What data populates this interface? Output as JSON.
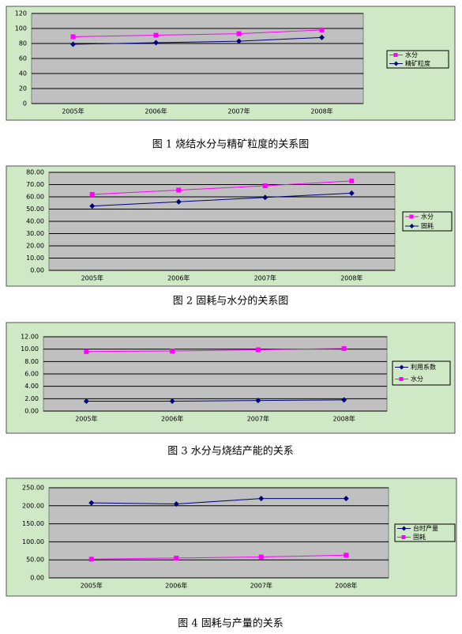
{
  "chart_data": [
    {
      "type": "line",
      "caption": "图 1   烧结水分与精矿粒度的关系图",
      "categories": [
        "2005年",
        "2006年",
        "2007年",
        "2008年"
      ],
      "series": [
        {
          "name": "水分",
          "color": "#ff00ff",
          "marker": "square",
          "values": [
            89,
            91,
            93,
            98
          ]
        },
        {
          "name": "精矿粒度",
          "color": "#000080",
          "marker": "diamond",
          "values": [
            79,
            81,
            83,
            88
          ]
        }
      ],
      "ylim": [
        0,
        120
      ],
      "yticks": [
        0,
        20,
        40,
        60,
        80,
        100,
        120
      ],
      "grid": true
    },
    {
      "type": "line",
      "caption": "图 2   固耗与水分的关系图",
      "categories": [
        "2005年",
        "2006年",
        "2007年",
        "2008年"
      ],
      "series": [
        {
          "name": "水分",
          "color": "#ff00ff",
          "marker": "square",
          "values": [
            62,
            65.5,
            69,
            73
          ]
        },
        {
          "name": "固耗",
          "color": "#000080",
          "marker": "diamond",
          "values": [
            52.5,
            56,
            59.5,
            63
          ]
        }
      ],
      "ylim": [
        0,
        80
      ],
      "yticks": [
        {
          "value": 0,
          "label": "0.00"
        },
        {
          "value": 10,
          "label": "10.00"
        },
        {
          "value": 20,
          "label": "20.00"
        },
        {
          "value": 30,
          "label": "30.00"
        },
        {
          "value": 40,
          "label": "40.00"
        },
        {
          "value": 50,
          "label": "50.00"
        },
        {
          "value": 60,
          "label": "60.00"
        },
        {
          "value": 70,
          "label": "70.00"
        },
        {
          "value": 80,
          "label": "80.00"
        }
      ],
      "grid": true
    },
    {
      "type": "line",
      "caption": "图 3   水分与烧结产能的关系",
      "categories": [
        "2005年",
        "2006年",
        "2007年",
        "2008年"
      ],
      "series": [
        {
          "name": "利用系数",
          "color": "#000080",
          "marker": "diamond",
          "values": [
            1.6,
            1.6,
            1.7,
            1.8
          ]
        },
        {
          "name": "水分",
          "color": "#ff00ff",
          "marker": "square",
          "values": [
            9.6,
            9.7,
            9.9,
            10.1
          ]
        }
      ],
      "ylim": [
        0,
        12
      ],
      "yticks": [
        {
          "value": 0,
          "label": "0.00"
        },
        {
          "value": 2,
          "label": "2.00"
        },
        {
          "value": 4,
          "label": "4.00"
        },
        {
          "value": 6,
          "label": "6.00"
        },
        {
          "value": 8,
          "label": "8.00"
        },
        {
          "value": 10,
          "label": "10.00"
        },
        {
          "value": 12,
          "label": "12.00"
        }
      ],
      "grid": true
    },
    {
      "type": "line",
      "caption": "图 4   固耗与产量的关系",
      "categories": [
        "2005年",
        "2006年",
        "2007年",
        "2008年"
      ],
      "series": [
        {
          "name": "台时产量",
          "color": "#000080",
          "marker": "diamond",
          "values": [
            208,
            205,
            220,
            220
          ]
        },
        {
          "name": "固耗",
          "color": "#ff00ff",
          "marker": "square",
          "values": [
            52,
            55,
            58,
            63
          ]
        }
      ],
      "ylim": [
        0,
        250
      ],
      "yticks": [
        {
          "value": 0,
          "label": "0.00"
        },
        {
          "value": 50,
          "label": "50.00"
        },
        {
          "value": 100,
          "label": "100.00"
        },
        {
          "value": 150,
          "label": "150.00"
        },
        {
          "value": 200,
          "label": "200.00"
        },
        {
          "value": 250,
          "label": "250.00"
        }
      ],
      "grid": true
    }
  ]
}
